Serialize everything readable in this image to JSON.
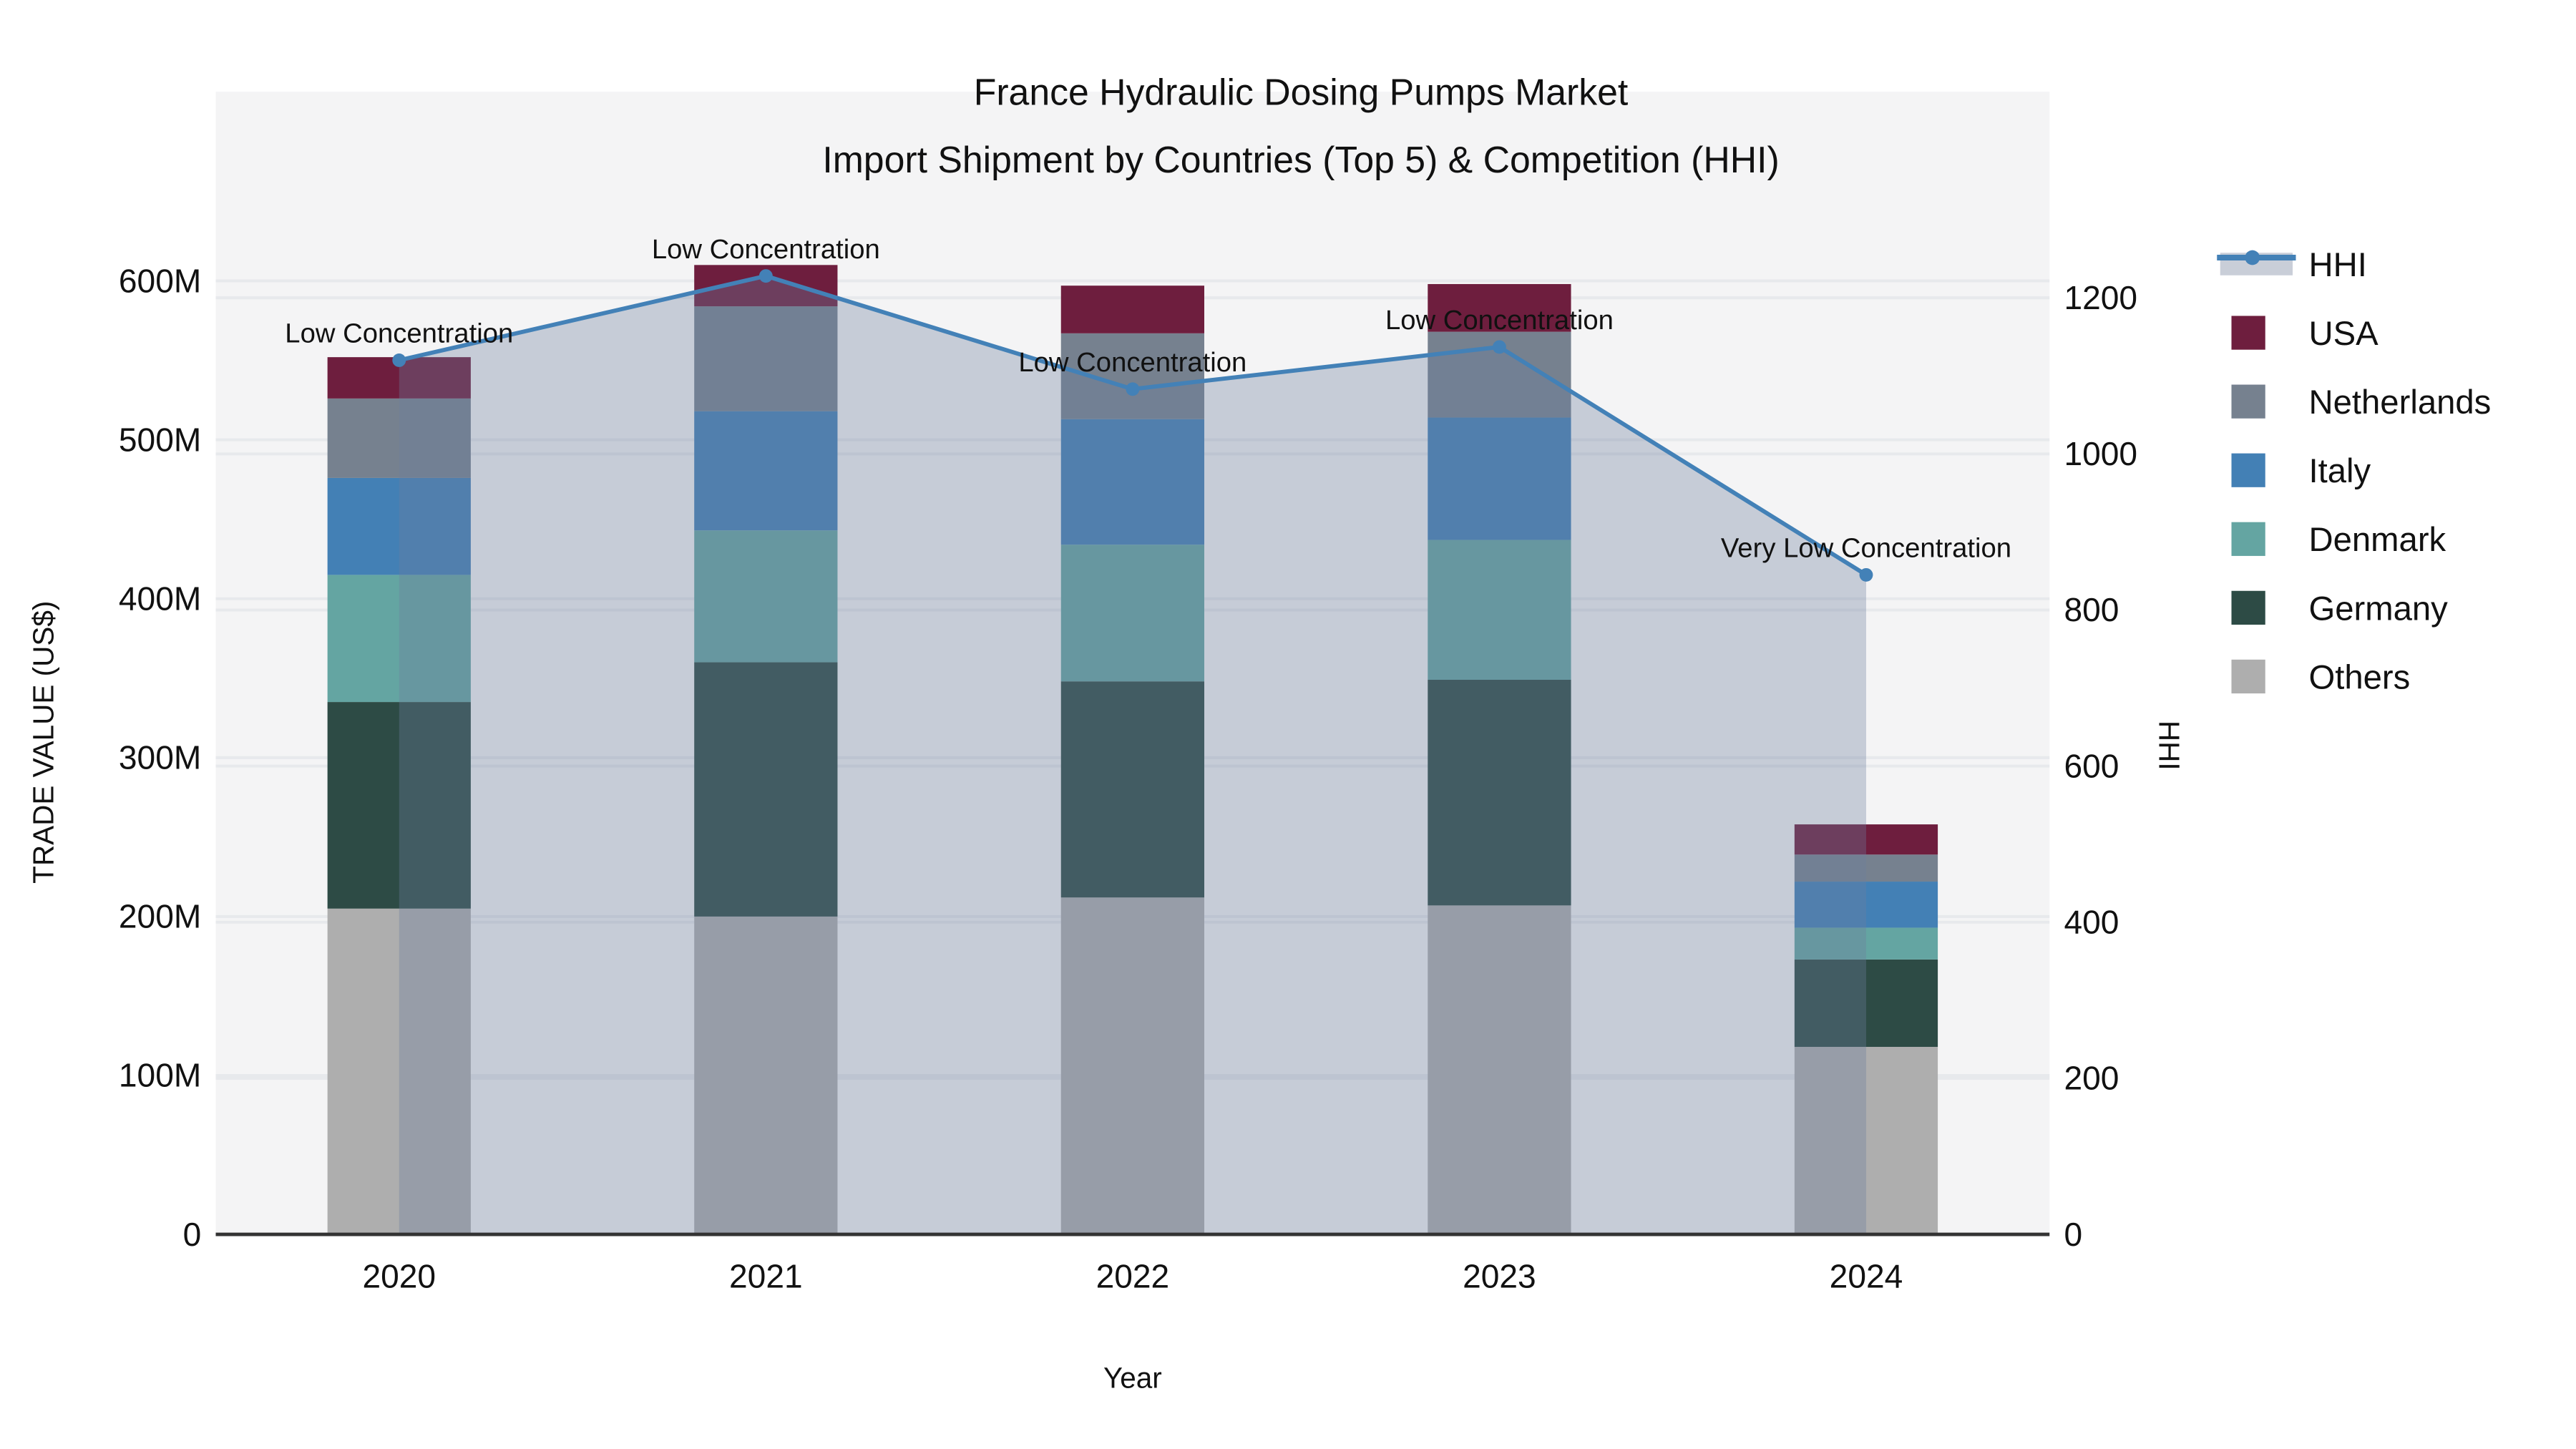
{
  "figure": {
    "title_line1": "France Hydraulic Dosing Pumps Market",
    "title_line2": "Import Shipment by Countries (Top 5) & Competition (HHI)",
    "background": "#ffffff",
    "plot_background": "#f4f4f5",
    "grid_color": "#e7e9ec",
    "axis_line_color": "#333333",
    "text_color": "#111111"
  },
  "chart_data": {
    "type": "bar",
    "subtype": "stacked-bar-with-line",
    "categories": [
      "2020",
      "2021",
      "2022",
      "2023",
      "2024"
    ],
    "series": [
      {
        "name": "Others",
        "color": "#aeaeae",
        "values": [
          205,
          200,
          212,
          207,
          118
        ]
      },
      {
        "name": "Germany",
        "color": "#2d4b45",
        "values": [
          130,
          160,
          136,
          142,
          55
        ]
      },
      {
        "name": "Denmark",
        "color": "#64a5a2",
        "values": [
          80,
          83,
          86,
          88,
          20
        ]
      },
      {
        "name": "Italy",
        "color": "#4380b5",
        "values": [
          61,
          75,
          79,
          77,
          29
        ]
      },
      {
        "name": "Netherlands",
        "color": "#76818f",
        "values": [
          50,
          66,
          54,
          54,
          17
        ]
      },
      {
        "name": "USA",
        "color": "#6e1e3e",
        "values": [
          26,
          26,
          30,
          30,
          19
        ]
      }
    ],
    "values_unit": "M US$",
    "line_series": {
      "name": "HHI",
      "color": "#4381b7",
      "fill_color": "rgba(107,127,157,0.34)",
      "values": [
        1120,
        1228,
        1083,
        1137,
        845
      ]
    },
    "annotations": [
      {
        "category": "2020",
        "label": "Low Concentration"
      },
      {
        "category": "2021",
        "label": "Low Concentration"
      },
      {
        "category": "2022",
        "label": "Low Concentration"
      },
      {
        "category": "2023",
        "label": "Low Concentration"
      },
      {
        "category": "2024",
        "label": "Very Low Concentration"
      }
    ],
    "xlabel": "Year",
    "ylabel_left": "TRADE VALUE (US$)",
    "ylabel_right": "HHI",
    "y_left_ticks": [
      {
        "value": 0,
        "label": "0"
      },
      {
        "value": 100,
        "label": "100M"
      },
      {
        "value": 200,
        "label": "200M"
      },
      {
        "value": 300,
        "label": "300M"
      },
      {
        "value": 400,
        "label": "400M"
      },
      {
        "value": 500,
        "label": "500M"
      },
      {
        "value": 600,
        "label": "600M"
      }
    ],
    "y_right_ticks": [
      {
        "value": 0,
        "label": "0"
      },
      {
        "value": 200,
        "label": "200"
      },
      {
        "value": 400,
        "label": "400"
      },
      {
        "value": 600,
        "label": "600"
      },
      {
        "value": 800,
        "label": "800"
      },
      {
        "value": 1000,
        "label": "1000"
      },
      {
        "value": 1200,
        "label": "1200"
      }
    ],
    "ylim_left": [
      0,
      719
    ],
    "ylim_right": [
      0,
      1464
    ],
    "grid": true,
    "legend_position": "right"
  },
  "legend": {
    "items": [
      {
        "label": "HHI",
        "type": "line",
        "color": "#4381b7",
        "band_color": "#c9ced8"
      },
      {
        "label": "USA",
        "type": "swatch",
        "color": "#6e1e3e"
      },
      {
        "label": "Netherlands",
        "type": "swatch",
        "color": "#76818f"
      },
      {
        "label": "Italy",
        "type": "swatch",
        "color": "#4380b5"
      },
      {
        "label": "Denmark",
        "type": "swatch",
        "color": "#64a5a2"
      },
      {
        "label": "Germany",
        "type": "swatch",
        "color": "#2d4b45"
      },
      {
        "label": "Others",
        "type": "swatch",
        "color": "#aeaeae"
      }
    ]
  }
}
